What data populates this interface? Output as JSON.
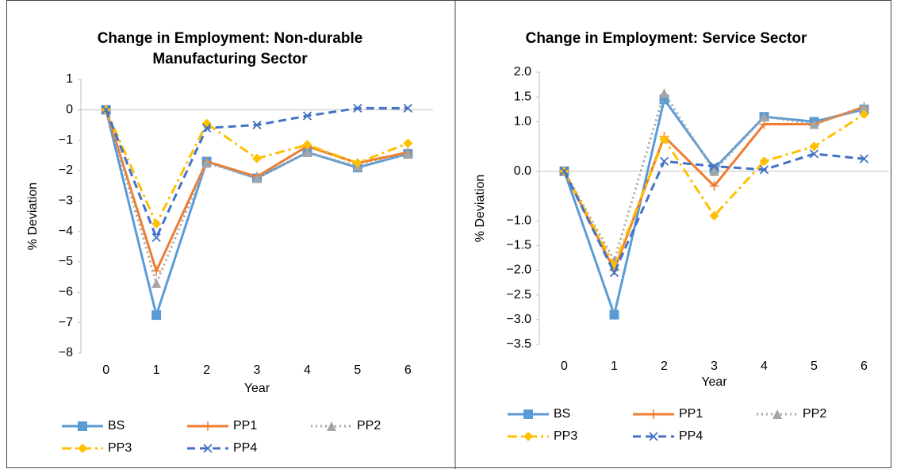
{
  "chart_data": [
    {
      "type": "line",
      "title": "Change in Employment: Non-durable Manufacturing Sector",
      "x_label": "Year",
      "y_label": "% Deviation",
      "categories": [
        "0",
        "1",
        "2",
        "3",
        "4",
        "5",
        "6"
      ],
      "ylim": [
        -8,
        1
      ],
      "yticks": [
        1,
        0,
        {
          "value": -1,
          "label": "−1"
        },
        {
          "value": -2,
          "label": "−2"
        },
        {
          "value": -3,
          "label": "−3"
        },
        {
          "value": -4,
          "label": "−4"
        },
        {
          "value": -5,
          "label": "−5"
        },
        {
          "value": -6,
          "label": "−6"
        },
        {
          "value": -7,
          "label": "−7"
        },
        {
          "value": -8,
          "label": "−8"
        }
      ],
      "series": [
        {
          "name": "BS",
          "color": "#5b9bd5",
          "dash": "solid",
          "marker": "square",
          "values": [
            0,
            -6.75,
            -1.7,
            -2.25,
            -1.4,
            -1.9,
            -1.45
          ]
        },
        {
          "name": "PP1",
          "color": "#ed7d31",
          "dash": "solid",
          "marker": "plus",
          "values": [
            0,
            -5.3,
            -1.7,
            -2.2,
            -1.2,
            -1.75,
            -1.4
          ]
        },
        {
          "name": "PP2",
          "color": "#a5a5a5",
          "dash": "dot",
          "marker": "triangle",
          "values": [
            0,
            -5.7,
            -1.75,
            -2.25,
            -1.4,
            -1.85,
            -1.45
          ]
        },
        {
          "name": "PP3",
          "color": "#ffc000",
          "dash": "dashdot",
          "marker": "diamond",
          "values": [
            0,
            -3.75,
            -0.45,
            -1.6,
            -1.15,
            -1.75,
            -1.1
          ]
        },
        {
          "name": "PP4",
          "color": "#4472c4",
          "dash": "dash",
          "marker": "x",
          "values": [
            0,
            -4.2,
            -0.6,
            -0.5,
            -0.2,
            0.05,
            0.05
          ]
        }
      ]
    },
    {
      "type": "line",
      "title": "Change in Employment: Service Sector",
      "x_label": "Year",
      "y_label": "% Deviation",
      "categories": [
        "0",
        "1",
        "2",
        "3",
        "4",
        "5",
        "6"
      ],
      "ylim": [
        -3.5,
        2.0
      ],
      "yticks": [
        {
          "value": 2.0,
          "label": "2.0"
        },
        {
          "value": 1.5,
          "label": "1.5"
        },
        {
          "value": 1.0,
          "label": "1.0"
        },
        {
          "value": 0.0,
          "label": "0.0"
        },
        {
          "value": -1.0,
          "label": "−1.0"
        },
        {
          "value": -1.5,
          "label": "−1.5"
        },
        {
          "value": -2.0,
          "label": "−2.0"
        },
        {
          "value": -2.5,
          "label": "−2.5"
        },
        {
          "value": -3.0,
          "label": "−3.0"
        },
        {
          "value": -3.5,
          "label": "−3.5"
        }
      ],
      "series": [
        {
          "name": "BS",
          "color": "#5b9bd5",
          "dash": "solid",
          "marker": "square",
          "values": [
            0,
            -2.9,
            1.45,
            0.05,
            1.1,
            1.0,
            1.25
          ]
        },
        {
          "name": "PP1",
          "color": "#ed7d31",
          "dash": "solid",
          "marker": "plus",
          "values": [
            0,
            -2.0,
            0.7,
            -0.3,
            0.95,
            0.95,
            1.3
          ]
        },
        {
          "name": "PP2",
          "color": "#a5a5a5",
          "dash": "dot",
          "marker": "triangle",
          "values": [
            0,
            -1.8,
            1.58,
            0.0,
            1.1,
            0.95,
            1.3
          ]
        },
        {
          "name": "PP3",
          "color": "#ffc000",
          "dash": "dashdot",
          "marker": "diamond",
          "values": [
            0,
            -1.9,
            0.65,
            -0.9,
            0.2,
            0.5,
            1.15
          ]
        },
        {
          "name": "PP4",
          "color": "#4472c4",
          "dash": "dash",
          "marker": "x",
          "values": [
            0,
            -2.05,
            0.2,
            0.1,
            0.03,
            0.35,
            0.25
          ]
        }
      ]
    }
  ]
}
